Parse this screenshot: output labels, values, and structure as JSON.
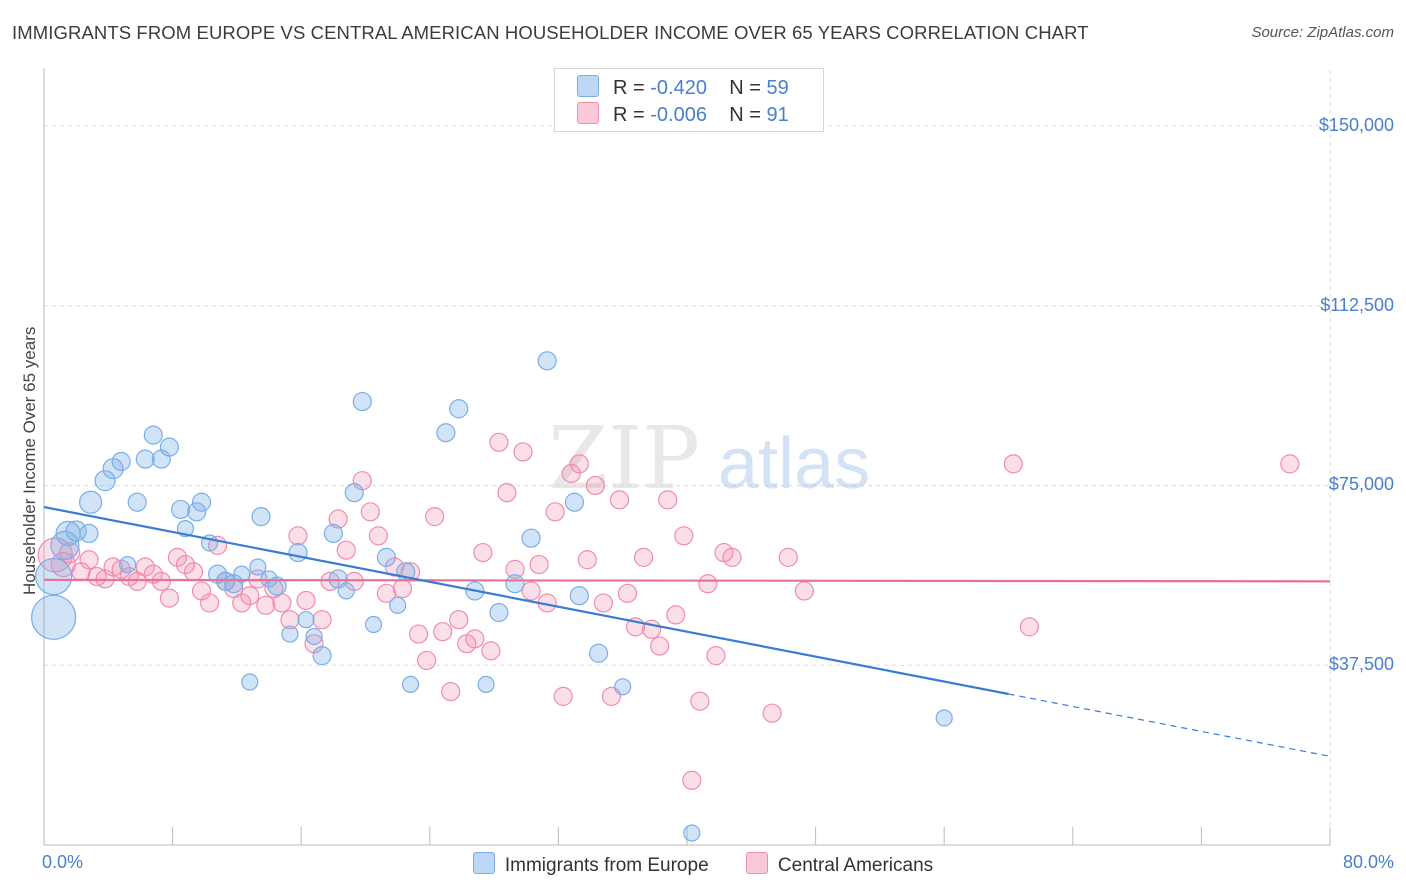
{
  "header": {
    "title": "IMMIGRANTS FROM EUROPE VS CENTRAL AMERICAN HOUSEHOLDER INCOME OVER 65 YEARS CORRELATION CHART",
    "source": "Source: ZipAtlas.com"
  },
  "watermark": {
    "zip": "ZIP",
    "atlas": "atlas"
  },
  "legend_top": {
    "rows": [
      {
        "r_label": "R =",
        "r_value": "-0.420",
        "n_label": "N =",
        "n_value": "59"
      },
      {
        "r_label": "R =",
        "r_value": "-0.006",
        "n_label": "N =",
        "n_value": "91"
      }
    ]
  },
  "chart_data": {
    "type": "scatter",
    "title": "IMMIGRANTS FROM EUROPE VS CENTRAL AMERICAN HOUSEHOLDER INCOME OVER 65 YEARS CORRELATION CHART",
    "xlabel": "",
    "ylabel": "Householder Income Over 65 years",
    "xlim": [
      0,
      80
    ],
    "ylim": [
      0,
      160000
    ],
    "x_tick_labels": [
      "0.0%",
      "80.0%"
    ],
    "y_ticks": [
      37500,
      75000,
      112500,
      150000
    ],
    "y_tick_labels": [
      "$37,500",
      "$75,000",
      "$112,500",
      "$150,000"
    ],
    "grid": true,
    "legend_position": "bottom",
    "colors": {
      "europe": "#7aaee6",
      "central": "#f08cac",
      "europe_line": "#3a7bd5",
      "central_line": "#e8719a"
    },
    "series": [
      {
        "name": "Immigrants from Europe",
        "key": "europe",
        "r": -0.42,
        "n": 59,
        "trend": {
          "x0": 0,
          "y0": 70500,
          "x1": 60,
          "y1": 31500,
          "x_dash_end": 80,
          "y_dash_end": 18500
        },
        "points": [
          [
            0.6,
            47500,
            22
          ],
          [
            0.6,
            56000,
            18
          ],
          [
            1.3,
            62500,
            14
          ],
          [
            1.5,
            65000,
            12
          ],
          [
            2.0,
            65500,
            10
          ],
          [
            2.8,
            65000,
            9
          ],
          [
            2.9,
            71500,
            11
          ],
          [
            3.8,
            76000,
            10
          ],
          [
            4.3,
            78500,
            10
          ],
          [
            4.8,
            80000,
            9
          ],
          [
            5.2,
            58500,
            8
          ],
          [
            5.8,
            71500,
            9
          ],
          [
            6.3,
            80500,
            9
          ],
          [
            6.8,
            85500,
            9
          ],
          [
            7.3,
            80500,
            9
          ],
          [
            7.8,
            83000,
            9
          ],
          [
            8.5,
            70000,
            9
          ],
          [
            8.8,
            66000,
            8
          ],
          [
            9.5,
            69500,
            9
          ],
          [
            9.8,
            71500,
            9
          ],
          [
            10.3,
            63000,
            8
          ],
          [
            10.8,
            56500,
            9
          ],
          [
            11.3,
            55000,
            9
          ],
          [
            11.8,
            54500,
            9
          ],
          [
            12.3,
            56500,
            8
          ],
          [
            12.8,
            34000,
            8
          ],
          [
            13.3,
            58000,
            8
          ],
          [
            13.5,
            68500,
            9
          ],
          [
            14.0,
            55500,
            8
          ],
          [
            14.5,
            54000,
            9
          ],
          [
            15.3,
            44000,
            8
          ],
          [
            15.8,
            61000,
            9
          ],
          [
            16.3,
            47000,
            8
          ],
          [
            16.8,
            43500,
            8
          ],
          [
            17.3,
            39500,
            9
          ],
          [
            18.0,
            65000,
            9
          ],
          [
            18.3,
            55500,
            9
          ],
          [
            18.8,
            53000,
            8
          ],
          [
            19.3,
            73500,
            9
          ],
          [
            19.8,
            92500,
            9
          ],
          [
            20.5,
            46000,
            8
          ],
          [
            21.3,
            60000,
            9
          ],
          [
            22.0,
            50000,
            8
          ],
          [
            22.5,
            57000,
            9
          ],
          [
            22.8,
            33500,
            8
          ],
          [
            25.0,
            86000,
            9
          ],
          [
            25.8,
            91000,
            9
          ],
          [
            26.8,
            53000,
            9
          ],
          [
            27.5,
            33500,
            8
          ],
          [
            28.3,
            48500,
            9
          ],
          [
            29.3,
            54500,
            9
          ],
          [
            30.3,
            64000,
            9
          ],
          [
            31.3,
            101000,
            9
          ],
          [
            33.0,
            71500,
            9
          ],
          [
            33.3,
            52000,
            9
          ],
          [
            34.5,
            40000,
            9
          ],
          [
            36.0,
            33000,
            8
          ],
          [
            40.3,
            2500,
            8
          ],
          [
            56.0,
            26500,
            8
          ]
        ]
      },
      {
        "name": "Central Americans",
        "key": "central",
        "r": -0.006,
        "n": 91,
        "trend": {
          "x0": 0,
          "y0": 55300,
          "x1": 80,
          "y1": 55000
        },
        "points": [
          [
            0.7,
            60500,
            17
          ],
          [
            1.2,
            58500,
            12
          ],
          [
            1.6,
            61000,
            10
          ],
          [
            2.3,
            57000,
            9
          ],
          [
            2.8,
            59500,
            9
          ],
          [
            3.3,
            56000,
            9
          ],
          [
            3.8,
            55500,
            9
          ],
          [
            4.3,
            58000,
            9
          ],
          [
            4.8,
            57500,
            9
          ],
          [
            5.3,
            56000,
            9
          ],
          [
            5.8,
            55000,
            9
          ],
          [
            6.3,
            58000,
            9
          ],
          [
            6.8,
            56500,
            9
          ],
          [
            7.3,
            55000,
            9
          ],
          [
            7.8,
            51500,
            9
          ],
          [
            8.3,
            60000,
            9
          ],
          [
            8.8,
            58500,
            9
          ],
          [
            9.3,
            57000,
            9
          ],
          [
            9.8,
            53000,
            9
          ],
          [
            10.3,
            50500,
            9
          ],
          [
            10.8,
            62500,
            9
          ],
          [
            11.3,
            55000,
            9
          ],
          [
            11.8,
            53500,
            9
          ],
          [
            12.3,
            50500,
            9
          ],
          [
            12.8,
            52000,
            9
          ],
          [
            13.3,
            55500,
            9
          ],
          [
            13.8,
            50000,
            9
          ],
          [
            14.3,
            53500,
            9
          ],
          [
            14.8,
            50500,
            9
          ],
          [
            15.3,
            47000,
            9
          ],
          [
            15.8,
            64500,
            9
          ],
          [
            16.3,
            51000,
            9
          ],
          [
            16.8,
            42000,
            9
          ],
          [
            17.3,
            47000,
            9
          ],
          [
            17.8,
            55000,
            9
          ],
          [
            18.3,
            68000,
            9
          ],
          [
            18.8,
            61500,
            9
          ],
          [
            19.3,
            55000,
            9
          ],
          [
            19.8,
            76000,
            9
          ],
          [
            20.3,
            69500,
            9
          ],
          [
            20.8,
            64500,
            9
          ],
          [
            21.3,
            52500,
            9
          ],
          [
            21.8,
            58000,
            9
          ],
          [
            22.3,
            53500,
            9
          ],
          [
            22.8,
            57000,
            9
          ],
          [
            23.3,
            44000,
            9
          ],
          [
            23.8,
            38500,
            9
          ],
          [
            24.3,
            68500,
            9
          ],
          [
            24.8,
            44500,
            9
          ],
          [
            25.3,
            32000,
            9
          ],
          [
            25.8,
            47000,
            9
          ],
          [
            26.3,
            42000,
            9
          ],
          [
            26.8,
            43000,
            9
          ],
          [
            27.3,
            61000,
            9
          ],
          [
            27.8,
            40500,
            9
          ],
          [
            28.3,
            84000,
            9
          ],
          [
            28.8,
            73500,
            9
          ],
          [
            29.3,
            57500,
            9
          ],
          [
            29.8,
            82000,
            9
          ],
          [
            30.3,
            53000,
            9
          ],
          [
            30.8,
            58500,
            9
          ],
          [
            31.3,
            50500,
            9
          ],
          [
            31.8,
            69500,
            9
          ],
          [
            32.3,
            31000,
            9
          ],
          [
            32.8,
            77500,
            9
          ],
          [
            33.3,
            79500,
            9
          ],
          [
            33.8,
            59500,
            9
          ],
          [
            34.3,
            75000,
            9
          ],
          [
            34.8,
            50500,
            9
          ],
          [
            35.3,
            31000,
            9
          ],
          [
            35.8,
            72000,
            9
          ],
          [
            36.3,
            52500,
            9
          ],
          [
            36.8,
            45500,
            9
          ],
          [
            37.3,
            60000,
            9
          ],
          [
            37.8,
            45000,
            9
          ],
          [
            38.3,
            41500,
            9
          ],
          [
            38.8,
            72000,
            9
          ],
          [
            39.3,
            48000,
            9
          ],
          [
            39.8,
            64500,
            9
          ],
          [
            40.3,
            13500,
            9
          ],
          [
            40.8,
            30000,
            9
          ],
          [
            41.3,
            54500,
            9
          ],
          [
            41.8,
            39500,
            9
          ],
          [
            42.3,
            61000,
            9
          ],
          [
            42.8,
            60000,
            9
          ],
          [
            45.3,
            27500,
            9
          ],
          [
            46.3,
            60000,
            9
          ],
          [
            47.3,
            53000,
            9
          ],
          [
            60.3,
            79500,
            9
          ],
          [
            61.3,
            45500,
            9
          ],
          [
            77.5,
            79500,
            9
          ]
        ]
      }
    ]
  }
}
